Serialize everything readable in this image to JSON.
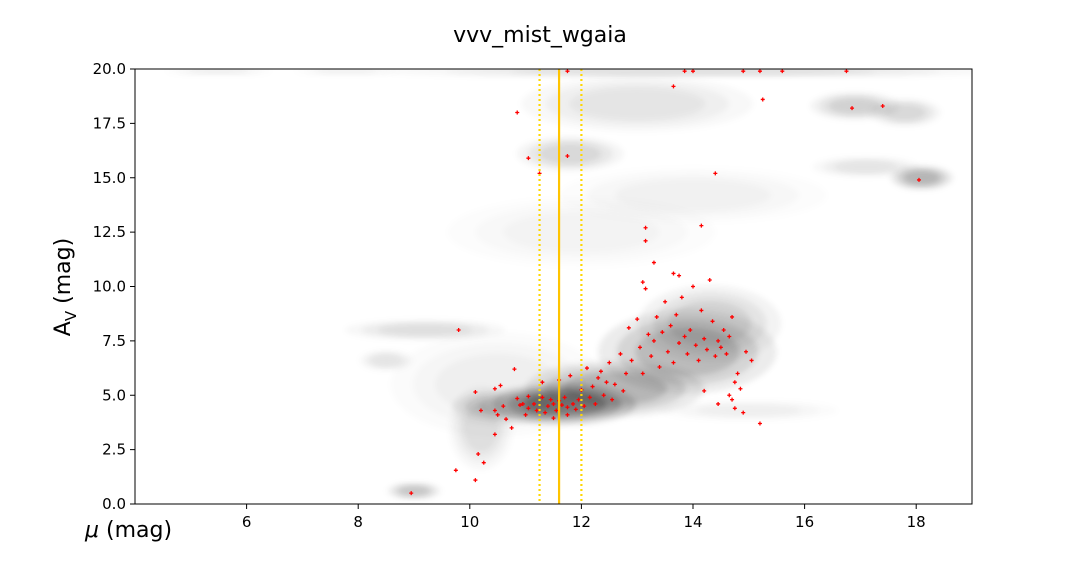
{
  "chart_data": {
    "type": "scatter",
    "title": "vvv_mist_wgaia",
    "xlabel": "μ (mag)",
    "ylabel": "A_V (mag)",
    "xlim": [
      4,
      19
    ],
    "ylim": [
      0,
      20
    ],
    "xticks": [
      6,
      8,
      10,
      12,
      14,
      16,
      18
    ],
    "yticks": [
      0.0,
      2.5,
      5.0,
      7.5,
      10.0,
      12.5,
      15.0,
      17.5,
      20.0
    ],
    "xtick_labels": [
      "6",
      "8",
      "10",
      "12",
      "14",
      "16",
      "18"
    ],
    "ytick_labels": [
      "0.0",
      "2.5",
      "5.0",
      "7.5",
      "10.0",
      "12.5",
      "15.0",
      "17.5",
      "20.0"
    ],
    "grid": false,
    "vertical_lines": [
      {
        "x": 11.6,
        "style": "solid",
        "color": "#FFC400"
      },
      {
        "x": 11.25,
        "style": "dotted",
        "color": "#FFD700"
      },
      {
        "x": 12.0,
        "style": "dotted",
        "color": "#FFD700"
      }
    ],
    "density_background": {
      "colormap": "greys",
      "blobs": [
        {
          "x": 11.7,
          "y": 4.6,
          "sx": 0.8,
          "sy": 0.6,
          "w": 1.0
        },
        {
          "x": 12.6,
          "y": 5.3,
          "sx": 1.0,
          "sy": 0.8,
          "w": 0.6
        },
        {
          "x": 13.9,
          "y": 7.0,
          "sx": 1.0,
          "sy": 1.2,
          "w": 0.55
        },
        {
          "x": 14.3,
          "y": 8.3,
          "sx": 0.8,
          "sy": 1.1,
          "w": 0.35
        },
        {
          "x": 10.8,
          "y": 4.5,
          "sx": 0.7,
          "sy": 0.5,
          "w": 0.4
        },
        {
          "x": 10.2,
          "y": 3.5,
          "sx": 0.35,
          "sy": 1.2,
          "w": 0.25
        },
        {
          "x": 9.0,
          "y": 0.6,
          "sx": 0.3,
          "sy": 0.25,
          "w": 0.45
        },
        {
          "x": 9.2,
          "y": 8.0,
          "sx": 0.9,
          "sy": 0.3,
          "w": 0.25
        },
        {
          "x": 8.5,
          "y": 6.6,
          "sx": 0.3,
          "sy": 0.3,
          "w": 0.2
        },
        {
          "x": 18.1,
          "y": 15.0,
          "sx": 0.35,
          "sy": 0.35,
          "w": 0.6
        },
        {
          "x": 17.1,
          "y": 15.5,
          "sx": 0.6,
          "sy": 0.3,
          "w": 0.2
        },
        {
          "x": 16.9,
          "y": 18.3,
          "sx": 0.5,
          "sy": 0.4,
          "w": 0.35
        },
        {
          "x": 17.8,
          "y": 18.0,
          "sx": 0.4,
          "sy": 0.4,
          "w": 0.3
        },
        {
          "x": 13.0,
          "y": 18.4,
          "sx": 1.3,
          "sy": 0.8,
          "w": 0.2
        },
        {
          "x": 11.8,
          "y": 16.1,
          "sx": 0.6,
          "sy": 0.5,
          "w": 0.3
        },
        {
          "x": 14.0,
          "y": 19.9,
          "sx": 3.5,
          "sy": 0.2,
          "w": 0.25
        },
        {
          "x": 5.5,
          "y": 19.9,
          "sx": 0.6,
          "sy": 0.15,
          "w": 0.12
        },
        {
          "x": 7.8,
          "y": 19.9,
          "sx": 0.6,
          "sy": 0.15,
          "w": 0.1
        },
        {
          "x": 15.0,
          "y": 4.3,
          "sx": 1.0,
          "sy": 0.3,
          "w": 0.12
        },
        {
          "x": 14.0,
          "y": 14.2,
          "sx": 1.5,
          "sy": 0.8,
          "w": 0.1
        },
        {
          "x": 12.0,
          "y": 12.5,
          "sx": 1.5,
          "sy": 1.0,
          "w": 0.08
        },
        {
          "x": 10.5,
          "y": 5.5,
          "sx": 1.2,
          "sy": 1.5,
          "w": 0.12
        }
      ]
    },
    "points": [
      [
        8.95,
        0.5
      ],
      [
        9.75,
        1.55
      ],
      [
        10.1,
        1.1
      ],
      [
        10.15,
        2.3
      ],
      [
        10.25,
        1.9
      ],
      [
        10.45,
        3.2
      ],
      [
        9.8,
        8.0
      ],
      [
        10.1,
        5.15
      ],
      [
        10.2,
        4.3
      ],
      [
        10.45,
        4.3
      ],
      [
        10.45,
        5.3
      ],
      [
        10.5,
        4.1
      ],
      [
        10.55,
        5.45
      ],
      [
        10.6,
        4.5
      ],
      [
        10.65,
        3.9
      ],
      [
        10.75,
        3.5
      ],
      [
        10.8,
        6.2
      ],
      [
        10.85,
        4.85
      ],
      [
        10.9,
        4.55
      ],
      [
        10.95,
        4.6
      ],
      [
        11.0,
        4.1
      ],
      [
        11.05,
        4.95
      ],
      [
        11.05,
        4.4
      ],
      [
        11.15,
        4.6
      ],
      [
        11.2,
        4.3
      ],
      [
        11.3,
        4.9
      ],
      [
        11.3,
        5.6
      ],
      [
        11.35,
        4.2
      ],
      [
        11.4,
        4.5
      ],
      [
        11.45,
        4.8
      ],
      [
        11.5,
        4.6
      ],
      [
        11.5,
        3.95
      ],
      [
        11.55,
        4.3
      ],
      [
        11.6,
        4.75
      ],
      [
        11.6,
        5.7
      ],
      [
        11.65,
        4.55
      ],
      [
        11.7,
        4.9
      ],
      [
        11.75,
        4.1
      ],
      [
        11.75,
        4.45
      ],
      [
        11.8,
        5.9
      ],
      [
        11.85,
        4.6
      ],
      [
        11.9,
        4.35
      ],
      [
        11.95,
        4.8
      ],
      [
        12.0,
        5.25
      ],
      [
        12.05,
        4.5
      ],
      [
        12.1,
        6.25
      ],
      [
        12.15,
        4.9
      ],
      [
        12.2,
        5.4
      ],
      [
        12.25,
        4.6
      ],
      [
        12.3,
        5.8
      ],
      [
        12.35,
        6.1
      ],
      [
        12.4,
        5.0
      ],
      [
        12.45,
        5.6
      ],
      [
        12.5,
        6.5
      ],
      [
        12.55,
        4.8
      ],
      [
        12.6,
        5.5
      ],
      [
        12.7,
        6.9
      ],
      [
        12.75,
        5.2
      ],
      [
        12.8,
        6.0
      ],
      [
        12.85,
        8.1
      ],
      [
        12.9,
        6.6
      ],
      [
        13.0,
        8.5
      ],
      [
        13.05,
        7.2
      ],
      [
        13.1,
        6.0
      ],
      [
        13.15,
        9.9
      ],
      [
        13.2,
        7.8
      ],
      [
        13.25,
        6.8
      ],
      [
        13.3,
        7.5
      ],
      [
        13.35,
        8.6
      ],
      [
        13.4,
        6.3
      ],
      [
        13.45,
        7.9
      ],
      [
        13.5,
        9.3
      ],
      [
        13.55,
        7.0
      ],
      [
        13.6,
        8.2
      ],
      [
        13.65,
        6.5
      ],
      [
        13.7,
        8.7
      ],
      [
        13.75,
        7.4
      ],
      [
        13.8,
        9.5
      ],
      [
        13.85,
        7.7
      ],
      [
        13.9,
        6.9
      ],
      [
        13.95,
        8.0
      ],
      [
        14.0,
        10.0
      ],
      [
        14.05,
        7.3
      ],
      [
        14.1,
        6.6
      ],
      [
        14.15,
        8.9
      ],
      [
        14.2,
        7.6
      ],
      [
        14.25,
        7.1
      ],
      [
        14.3,
        10.3
      ],
      [
        14.35,
        8.4
      ],
      [
        14.4,
        6.8
      ],
      [
        14.45,
        7.5
      ],
      [
        14.5,
        7.2
      ],
      [
        14.55,
        8.0
      ],
      [
        14.6,
        6.9
      ],
      [
        14.65,
        7.7
      ],
      [
        14.7,
        8.6
      ],
      [
        14.75,
        4.4
      ],
      [
        14.8,
        6.0
      ],
      [
        14.85,
        5.3
      ],
      [
        14.9,
        4.2
      ],
      [
        14.95,
        7.0
      ],
      [
        15.05,
        6.6
      ],
      [
        14.65,
        5.0
      ],
      [
        14.7,
        4.8
      ],
      [
        14.75,
        5.6
      ],
      [
        14.45,
        4.6
      ],
      [
        15.2,
        3.7
      ],
      [
        14.2,
        5.2
      ],
      [
        13.15,
        12.7
      ],
      [
        13.15,
        12.1
      ],
      [
        13.3,
        11.1
      ],
      [
        13.65,
        10.6
      ],
      [
        13.75,
        10.5
      ],
      [
        14.15,
        12.8
      ],
      [
        13.1,
        10.2
      ],
      [
        14.4,
        15.2
      ],
      [
        10.85,
        18.0
      ],
      [
        11.05,
        15.9
      ],
      [
        11.25,
        15.2
      ],
      [
        11.75,
        16.0
      ],
      [
        11.75,
        19.9
      ],
      [
        13.65,
        19.2
      ],
      [
        13.85,
        19.9
      ],
      [
        14.0,
        19.9
      ],
      [
        14.9,
        19.9
      ],
      [
        15.25,
        18.6
      ],
      [
        15.2,
        19.9
      ],
      [
        15.6,
        19.9
      ],
      [
        16.75,
        19.9
      ],
      [
        16.85,
        18.2
      ],
      [
        17.4,
        18.3
      ],
      [
        18.05,
        14.9
      ]
    ]
  }
}
